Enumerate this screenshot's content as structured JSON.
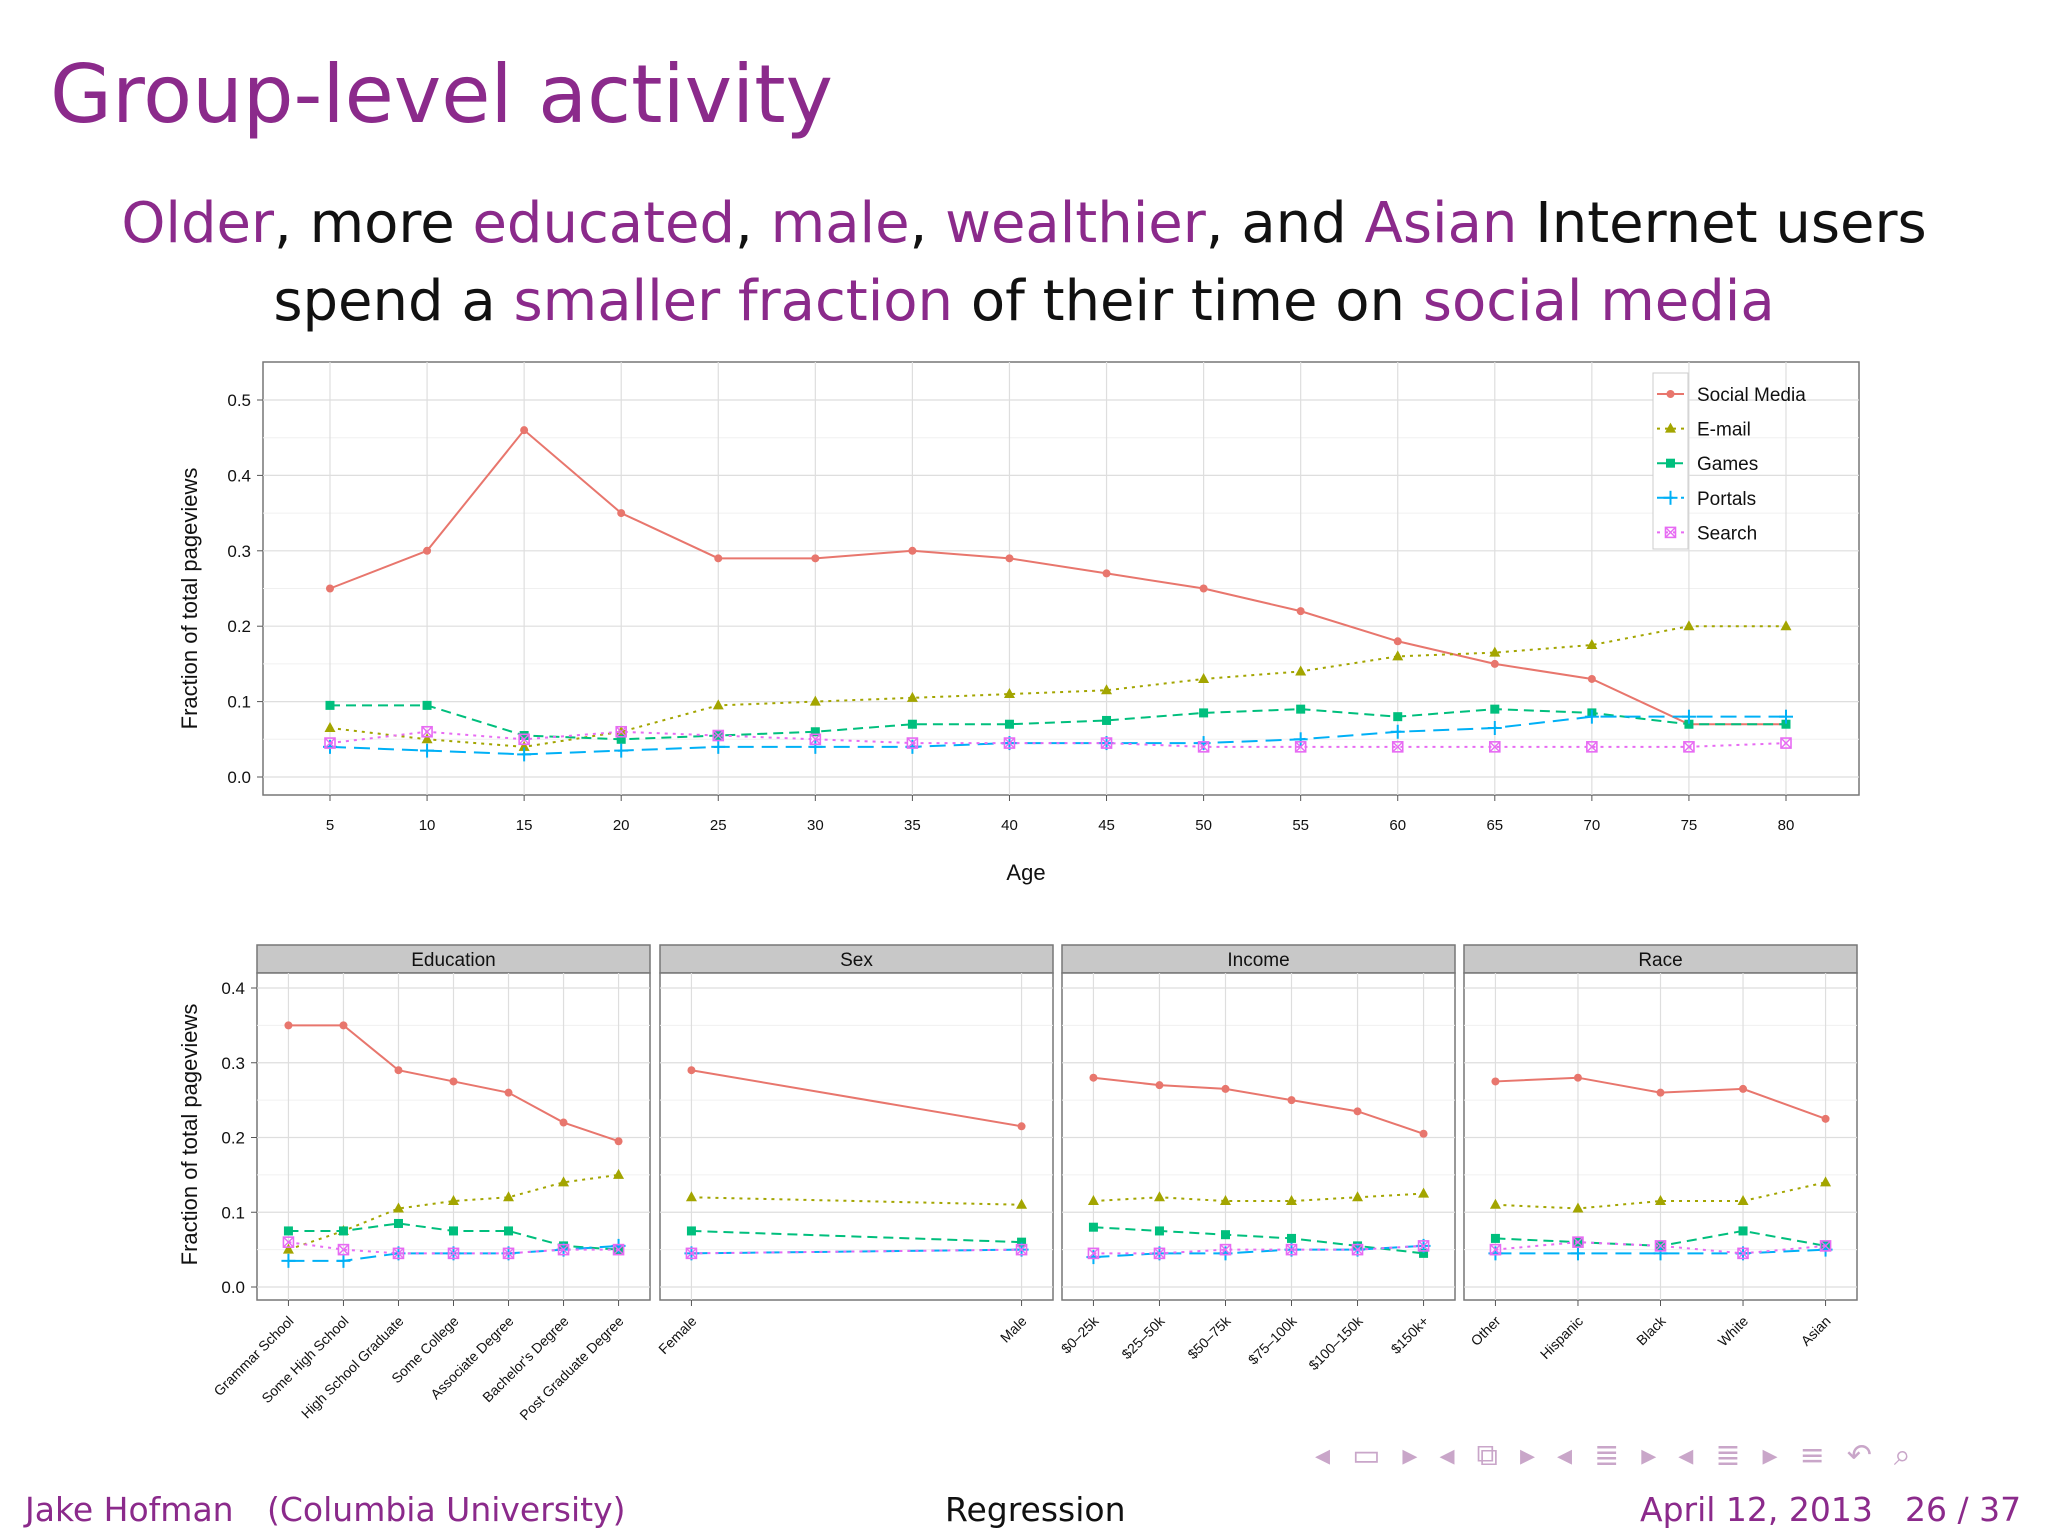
{
  "slide": {
    "title": "Group-level activity",
    "subtitle_line1": [
      {
        "text": "Older",
        "hl": true
      },
      {
        "text": ", more ",
        "hl": false
      },
      {
        "text": "educated",
        "hl": true
      },
      {
        "text": ", ",
        "hl": false
      },
      {
        "text": "male",
        "hl": true
      },
      {
        "text": ", ",
        "hl": false
      },
      {
        "text": "wealthier",
        "hl": true
      },
      {
        "text": ", and ",
        "hl": false
      },
      {
        "text": "Asian",
        "hl": true
      },
      {
        "text": " Internet users",
        "hl": false
      }
    ],
    "subtitle_line2": [
      {
        "text": "spend a ",
        "hl": false
      },
      {
        "text": "smaller fraction",
        "hl": true
      },
      {
        "text": " of their time on ",
        "hl": false
      },
      {
        "text": "social media",
        "hl": true
      }
    ],
    "accent_color": "#8b2a8b"
  },
  "footer": {
    "author": "Jake Hofman",
    "affiliation": "(Columbia University)",
    "topic": "Regression",
    "date": "April 12, 2013",
    "page": "26 / 37"
  },
  "nav_icons": [
    "nav-prev-frame-icon",
    "nav-frame-icon",
    "nav-next-frame-icon",
    "nav-prev-section-icon",
    "nav-section-icon",
    "nav-next-section-icon",
    "nav-prev-subsection-icon",
    "nav-subsection-icon",
    "nav-next-subsection-icon",
    "nav-prev-icon",
    "nav-list-icon",
    "nav-next-icon",
    "nav-align-icon",
    "nav-undo-icon",
    "nav-search-icon"
  ],
  "series_styles": {
    "Social Media": {
      "color": "#e8766d",
      "marker": "circle",
      "dash": "solid"
    },
    "E-mail": {
      "color": "#a3a500",
      "marker": "triangle",
      "dash": "dotted"
    },
    "Games": {
      "color": "#00bf7d",
      "marker": "square",
      "dash": "dashed"
    },
    "Portals": {
      "color": "#00b0f6",
      "marker": "plus",
      "dash": "longdash"
    },
    "Search": {
      "color": "#e76bf3",
      "marker": "boxx",
      "dash": "dotted"
    }
  },
  "chart_data": [
    {
      "type": "line",
      "xlabel": "Age",
      "ylabel": "Fraction of total pageviews",
      "ylim": [
        0,
        0.5
      ],
      "yticks": [
        "0.0",
        "0.1",
        "0.2",
        "0.3",
        "0.4",
        "0.5"
      ],
      "x": [
        5,
        10,
        15,
        20,
        25,
        30,
        35,
        40,
        45,
        50,
        55,
        60,
        65,
        70,
        75,
        80
      ],
      "grid": true,
      "legend_position": "top-right",
      "series": [
        {
          "name": "Social Media",
          "values": [
            0.25,
            0.3,
            0.46,
            0.35,
            0.29,
            0.29,
            0.3,
            0.29,
            0.27,
            0.25,
            0.22,
            0.18,
            0.15,
            0.13,
            0.07,
            0.07
          ]
        },
        {
          "name": "E-mail",
          "values": [
            0.065,
            0.05,
            0.04,
            0.06,
            0.095,
            0.1,
            0.105,
            0.11,
            0.115,
            0.13,
            0.14,
            0.16,
            0.165,
            0.175,
            0.2,
            0.2
          ]
        },
        {
          "name": "Games",
          "values": [
            0.095,
            0.095,
            0.055,
            0.05,
            0.055,
            0.06,
            0.07,
            0.07,
            0.075,
            0.085,
            0.09,
            0.08,
            0.09,
            0.085,
            0.07,
            0.07
          ]
        },
        {
          "name": "Portals",
          "values": [
            0.04,
            0.035,
            0.03,
            0.035,
            0.04,
            0.04,
            0.04,
            0.045,
            0.045,
            0.045,
            0.05,
            0.06,
            0.065,
            0.08,
            0.08,
            0.08
          ]
        },
        {
          "name": "Search",
          "values": [
            0.045,
            0.06,
            0.05,
            0.06,
            0.055,
            0.05,
            0.045,
            0.045,
            0.045,
            0.04,
            0.04,
            0.04,
            0.04,
            0.04,
            0.04,
            0.045
          ]
        }
      ]
    },
    {
      "type": "line",
      "facet": "Education",
      "ylabel": "Fraction of total pageviews",
      "ylim": [
        0,
        0.4
      ],
      "yticks": [
        "0.0",
        "0.1",
        "0.2",
        "0.3",
        "0.4"
      ],
      "categories": [
        "Grammar School",
        "Some High School",
        "High School Graduate",
        "Some College",
        "Associate Degree",
        "Bachelor's Degree",
        "Post Graduate Degree"
      ],
      "series": [
        {
          "name": "Social Media",
          "values": [
            0.35,
            0.35,
            0.29,
            0.275,
            0.26,
            0.22,
            0.195
          ]
        },
        {
          "name": "E-mail",
          "values": [
            0.05,
            0.075,
            0.105,
            0.115,
            0.12,
            0.14,
            0.15
          ]
        },
        {
          "name": "Games",
          "values": [
            0.075,
            0.075,
            0.085,
            0.075,
            0.075,
            0.055,
            0.05
          ]
        },
        {
          "name": "Portals",
          "values": [
            0.035,
            0.035,
            0.045,
            0.045,
            0.045,
            0.05,
            0.055
          ]
        },
        {
          "name": "Search",
          "values": [
            0.06,
            0.05,
            0.045,
            0.045,
            0.045,
            0.05,
            0.05
          ]
        }
      ]
    },
    {
      "type": "line",
      "facet": "Sex",
      "ylim": [
        0,
        0.4
      ],
      "categories": [
        "Female",
        "Male"
      ],
      "series": [
        {
          "name": "Social Media",
          "values": [
            0.29,
            0.215
          ]
        },
        {
          "name": "E-mail",
          "values": [
            0.12,
            0.11
          ]
        },
        {
          "name": "Games",
          "values": [
            0.075,
            0.06
          ]
        },
        {
          "name": "Portals",
          "values": [
            0.045,
            0.05
          ]
        },
        {
          "name": "Search",
          "values": [
            0.045,
            0.05
          ]
        }
      ]
    },
    {
      "type": "line",
      "facet": "Income",
      "ylim": [
        0,
        0.4
      ],
      "categories": [
        "$0–25k",
        "$25–50k",
        "$50–75k",
        "$75–100k",
        "$100–150k",
        "$150k+"
      ],
      "series": [
        {
          "name": "Social Media",
          "values": [
            0.28,
            0.27,
            0.265,
            0.25,
            0.235,
            0.205
          ]
        },
        {
          "name": "E-mail",
          "values": [
            0.115,
            0.12,
            0.115,
            0.115,
            0.12,
            0.125
          ]
        },
        {
          "name": "Games",
          "values": [
            0.08,
            0.075,
            0.07,
            0.065,
            0.055,
            0.045
          ]
        },
        {
          "name": "Portals",
          "values": [
            0.04,
            0.045,
            0.045,
            0.05,
            0.05,
            0.055
          ]
        },
        {
          "name": "Search",
          "values": [
            0.045,
            0.045,
            0.05,
            0.05,
            0.05,
            0.055
          ]
        }
      ]
    },
    {
      "type": "line",
      "facet": "Race",
      "ylim": [
        0,
        0.4
      ],
      "categories": [
        "Other",
        "Hispanic",
        "Black",
        "White",
        "Asian"
      ],
      "series": [
        {
          "name": "Social Media",
          "values": [
            0.275,
            0.28,
            0.26,
            0.265,
            0.225
          ]
        },
        {
          "name": "E-mail",
          "values": [
            0.11,
            0.105,
            0.115,
            0.115,
            0.14
          ]
        },
        {
          "name": "Games",
          "values": [
            0.065,
            0.06,
            0.055,
            0.075,
            0.055
          ]
        },
        {
          "name": "Portals",
          "values": [
            0.045,
            0.045,
            0.045,
            0.045,
            0.05
          ]
        },
        {
          "name": "Search",
          "values": [
            0.05,
            0.06,
            0.055,
            0.045,
            0.055
          ]
        }
      ]
    }
  ]
}
